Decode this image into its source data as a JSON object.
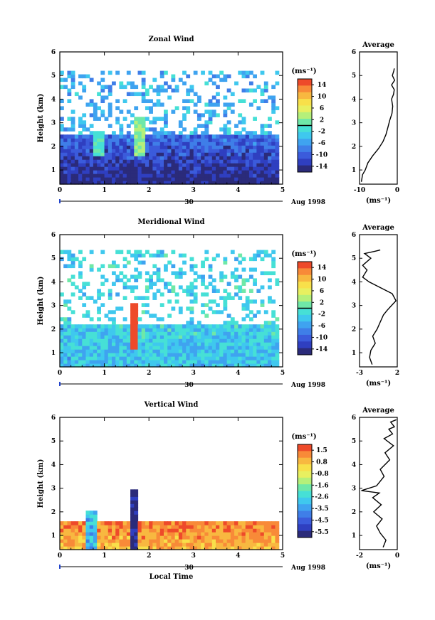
{
  "colors": {
    "frame": "#000000",
    "background": "#ffffff",
    "palette": [
      "#2b2b7a",
      "#2f3fc0",
      "#3b5bdb",
      "#3f7ee8",
      "#3fa3f0",
      "#3fc8ee",
      "#46e0d6",
      "#6fe8a8",
      "#b5f07a",
      "#e8f060",
      "#f8e04a",
      "#f8b840",
      "#f88a38",
      "#ee4a2a"
    ]
  },
  "shared": {
    "date_label": "Aug 1998",
    "day_label": "30",
    "xlabel": "Local Time"
  },
  "chart_data": [
    {
      "id": "zonal",
      "type": "heatmap",
      "title": "Zonal Wind",
      "xlabel": "",
      "ylabel": "Height (km)",
      "xlim": [
        0,
        5
      ],
      "ylim": [
        0.4,
        6
      ],
      "xticks": [
        0,
        1,
        2,
        3,
        4,
        5
      ],
      "yticks": [
        1,
        2,
        3,
        4,
        5,
        6
      ],
      "colorbar": {
        "unit": "(ms⁻¹)",
        "ticks": [
          "14",
          "10",
          "6",
          "2",
          "-2",
          "-6",
          "-10",
          "-14"
        ],
        "min": -14,
        "max": 14,
        "contour_level": 0
      },
      "field": {
        "base": -12,
        "top_km": 2.4,
        "sparse_top_km": 5.2,
        "sparse_base": -4
      },
      "features": [
        {
          "t": 0.8,
          "value": 0,
          "z_min": 1.5,
          "z_max": 2.6
        },
        {
          "t": 1.75,
          "value": 2,
          "z_min": 1.5,
          "z_max": 3.2
        }
      ],
      "profile": {
        "title": "Average",
        "xlabel": "(ms⁻¹)",
        "xlim": [
          -10,
          0
        ],
        "ylim": [
          0.4,
          6
        ],
        "xticks": [
          "-10",
          "0"
        ],
        "yticks": [
          1,
          2,
          3,
          4,
          5,
          6
        ],
        "x": [
          -9.5,
          -9.2,
          -8.5,
          -7.8,
          -6.5,
          -5,
          -3.8,
          -3,
          -2.5,
          -2,
          -1.4,
          -1.2,
          -1.5,
          -1,
          -0.8,
          -1.5,
          -0.7,
          -1.3,
          -0.9,
          -0.8
        ],
        "y": [
          0.5,
          0.8,
          1.0,
          1.3,
          1.6,
          1.9,
          2.2,
          2.5,
          2.8,
          3.1,
          3.4,
          3.7,
          4.0,
          4.2,
          4.4,
          4.6,
          4.8,
          5.0,
          5.2,
          5.3
        ]
      }
    },
    {
      "id": "meridional",
      "type": "heatmap",
      "title": "Meridional Wind",
      "xlabel": "",
      "ylabel": "Height (km)",
      "xlim": [
        0,
        5
      ],
      "ylim": [
        0.4,
        6
      ],
      "xticks": [
        0,
        1,
        2,
        3,
        4,
        5
      ],
      "yticks": [
        1,
        2,
        3,
        4,
        5,
        6
      ],
      "colorbar": {
        "unit": "(ms⁻¹)",
        "ticks": [
          "14",
          "10",
          "6",
          "2",
          "-2",
          "-6",
          "-10",
          "-14"
        ],
        "min": -14,
        "max": 14,
        "contour_level": 0
      },
      "field": {
        "base": -3,
        "top_km": 2.1,
        "sparse_top_km": 5.3,
        "sparse_base": -2
      },
      "features": [
        {
          "t": 1.62,
          "value": 13,
          "z_min": 1.1,
          "z_max": 3.0
        }
      ],
      "profile": {
        "title": "Average",
        "xlabel": "(ms⁻¹)",
        "xlim": [
          -3,
          3
        ],
        "ylim": [
          0.4,
          6
        ],
        "xticks": [
          "-3",
          "2"
        ],
        "yticks": [
          1,
          2,
          3,
          4,
          5,
          6
        ],
        "x": [
          -1,
          -1.4,
          -1.2,
          -0.5,
          -0.9,
          -0.2,
          0.3,
          0.8,
          1.4,
          2.1,
          2.8,
          2.2,
          0,
          -1.5,
          -2.5,
          -1.8,
          -2.5,
          -1.2,
          -2.2,
          -0.5,
          0.3
        ],
        "y": [
          0.5,
          0.8,
          1.1,
          1.4,
          1.7,
          2.0,
          2.3,
          2.6,
          2.8,
          3.0,
          3.2,
          3.5,
          3.8,
          4.0,
          4.2,
          4.5,
          4.7,
          5.0,
          5.2,
          5.3,
          5.35
        ]
      }
    },
    {
      "id": "vertical",
      "type": "heatmap",
      "title": "Vertical Wind",
      "xlabel": "Local Time",
      "ylabel": "Height (km)",
      "xlim": [
        0,
        5
      ],
      "ylim": [
        0.4,
        6
      ],
      "xticks": [
        0,
        1,
        2,
        3,
        4,
        5
      ],
      "yticks": [
        1,
        2,
        3,
        4,
        5,
        6
      ],
      "colorbar": {
        "unit": "(ms⁻¹)",
        "ticks": [
          "1.5",
          "0.8",
          "-0.8",
          "-1.6",
          "-2.6",
          "-3.5",
          "-4.5",
          "-5.5"
        ],
        "min": -5.5,
        "max": 1.5,
        "contour_level": null
      },
      "field": {
        "base": 0.6,
        "top_km": 1.7,
        "sparse_top_km": 1.7,
        "sparse_base": 0.6
      },
      "features": [
        {
          "t": 0.7,
          "value": -3.0,
          "z_min": 0.4,
          "z_max": 2.0
        },
        {
          "t": 1.62,
          "value": -5.5,
          "z_min": 0.4,
          "z_max": 2.9
        }
      ],
      "profile": {
        "title": "Average",
        "xlabel": "(ms⁻¹)",
        "xlim": [
          -3,
          1
        ],
        "ylim": [
          0.4,
          6
        ],
        "xticks": [
          "-2",
          "0"
        ],
        "yticks": [
          1,
          2,
          3,
          4,
          5,
          6
        ],
        "x": [
          -0.5,
          -0.2,
          -0.8,
          -1.2,
          -0.6,
          -1.5,
          -0.7,
          -1.6,
          -0.9,
          -2.8,
          -1.2,
          -0.4,
          -0.8,
          0.2,
          -0.3,
          0.6,
          -0.4,
          0.5,
          0.1,
          0.7,
          0.3,
          0.9
        ],
        "y": [
          0.5,
          0.8,
          1.1,
          1.4,
          1.7,
          2.0,
          2.3,
          2.6,
          2.8,
          2.9,
          3.1,
          3.5,
          3.8,
          4.2,
          4.5,
          4.8,
          5.1,
          5.3,
          5.5,
          5.6,
          5.8,
          5.9
        ]
      }
    }
  ]
}
